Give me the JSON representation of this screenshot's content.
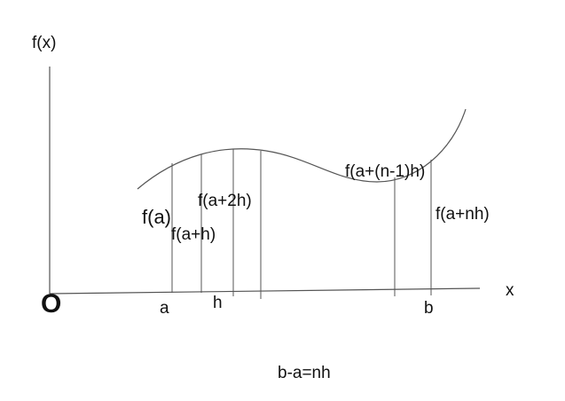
{
  "axes": {
    "y_label": "f(x)",
    "x_label": "x",
    "origin_label": "O"
  },
  "x_ticks": {
    "a": "a",
    "h": "h",
    "b": "b"
  },
  "ordinate_labels": {
    "f_a": "f(a)",
    "f_a_h": "f(a+h)",
    "f_a_2h": "f(a+2h)",
    "f_a_n1h": "f(a+(n-1)h)",
    "f_a_nh": "f(a+nh)"
  },
  "relation": "b-a=nh",
  "colors": {
    "background": "#ffffff",
    "stroke": "#555555",
    "text": "#111111"
  }
}
